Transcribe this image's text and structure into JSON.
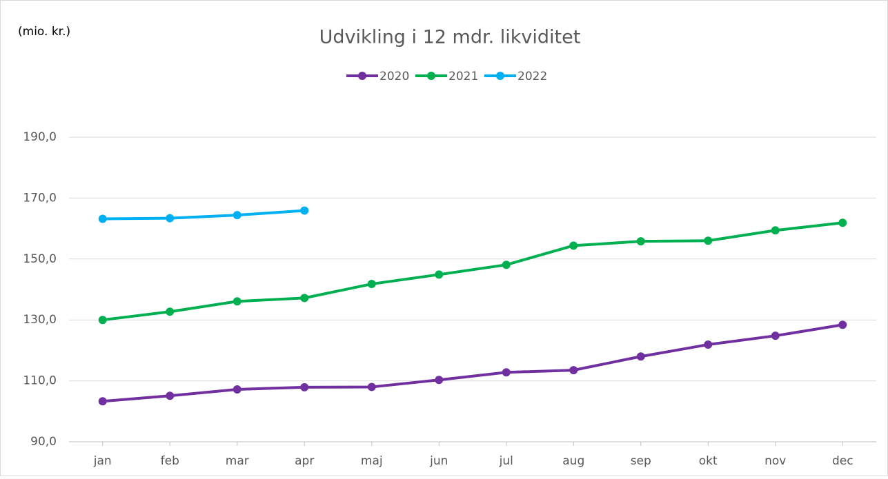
{
  "chart_data": {
    "type": "line",
    "title": "Udvikling i 12 mdr. likviditet",
    "unit_label": "(mio. kr.)",
    "categories": [
      "jan",
      "feb",
      "mar",
      "apr",
      "maj",
      "jun",
      "jul",
      "aug",
      "sep",
      "okt",
      "nov",
      "dec"
    ],
    "series": [
      {
        "name": "2020",
        "color": "#7030a0",
        "values": [
          103.3,
          105.1,
          107.2,
          107.9,
          108.0,
          110.3,
          112.8,
          113.5,
          118.0,
          121.9,
          124.8,
          128.4
        ]
      },
      {
        "name": "2021",
        "color": "#00b050",
        "values": [
          130.0,
          132.7,
          136.1,
          137.2,
          141.8,
          144.9,
          148.1,
          154.4,
          155.8,
          156.0,
          159.4,
          161.9
        ]
      },
      {
        "name": "2022",
        "color": "#00b0f0",
        "values": [
          163.2,
          163.4,
          164.4,
          165.9,
          null,
          null,
          null,
          null,
          null,
          null,
          null,
          null
        ]
      }
    ],
    "ylim": [
      90,
      190
    ],
    "yticks": [
      {
        "value": 90,
        "label": "90,0"
      },
      {
        "value": 110,
        "label": "110,0"
      },
      {
        "value": 130,
        "label": "130,0"
      },
      {
        "value": 150,
        "label": "150,0"
      },
      {
        "value": 170,
        "label": "170,0"
      },
      {
        "value": 190,
        "label": "190,0"
      }
    ],
    "grid": true,
    "legend": "top"
  }
}
